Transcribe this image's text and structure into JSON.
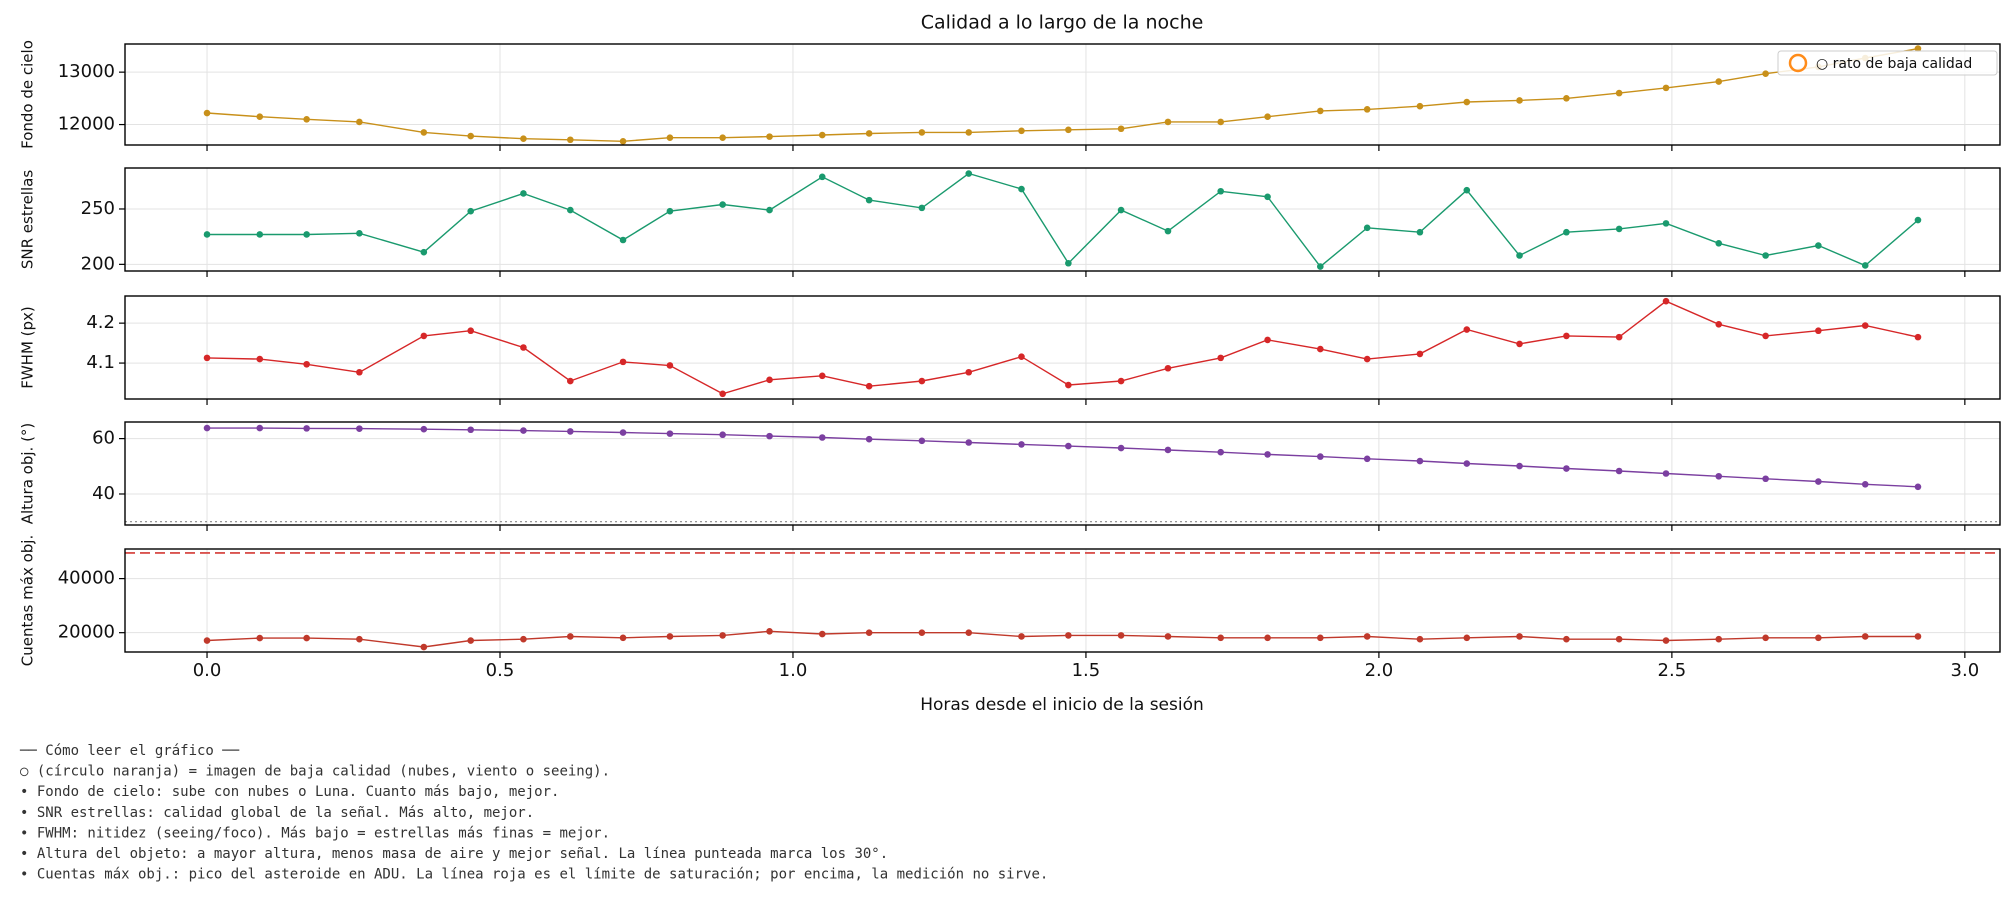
{
  "title": "Calidad a lo largo de la noche",
  "xlabel": "Horas desde el inicio de la sesión",
  "xlim": [
    -0.14,
    3.06
  ],
  "xticks": [
    {
      "value": 0,
      "label": "0.0"
    },
    {
      "value": 0.5,
      "label": "0.5"
    },
    {
      "value": 1,
      "label": "1.0"
    },
    {
      "value": 1.5,
      "label": "1.5"
    },
    {
      "value": 2,
      "label": "2.0"
    },
    {
      "value": 2.5,
      "label": "2.5"
    },
    {
      "value": 3,
      "label": "3.0"
    }
  ],
  "x": [
    0,
    0.09,
    0.17,
    0.26,
    0.37,
    0.45,
    0.54,
    0.62,
    0.71,
    0.79,
    0.88,
    0.96,
    1.05,
    1.13,
    1.22,
    1.3,
    1.39,
    1.47,
    1.56,
    1.64,
    1.73,
    1.81,
    1.9,
    1.98,
    2.07,
    2.15,
    2.24,
    2.32,
    2.41,
    2.49,
    2.58,
    2.66,
    2.75,
    2.83,
    2.92
  ],
  "chart_data": [
    {
      "type": "line",
      "ylabel": "Fondo de cielo",
      "color": "#c8901a",
      "grid": true,
      "ylim": [
        11610,
        13537
      ],
      "yticks": [
        12000,
        13000
      ],
      "values": [
        12220,
        12150,
        12100,
        12050,
        11850,
        11780,
        11730,
        11710,
        11680,
        11750,
        11750,
        11770,
        11800,
        11830,
        11850,
        11850,
        11880,
        11900,
        11920,
        12050,
        12050,
        12150,
        12260,
        12290,
        12350,
        12430,
        12460,
        12500,
        12600,
        12700,
        12820,
        12970,
        13100,
        13270,
        13450
      ],
      "legend": {
        "label": "○ rato de baja calidad",
        "position": "upper right",
        "marker_color": "#ff8c1a"
      }
    },
    {
      "type": "line",
      "ylabel": "SNR estrellas",
      "color": "#1a9a6e",
      "grid": true,
      "ylim": [
        194,
        287
      ],
      "yticks": [
        200,
        250
      ],
      "values": [
        227,
        227,
        227,
        228,
        211,
        248,
        264,
        249,
        222,
        248,
        254,
        249,
        279,
        258,
        251,
        282,
        268,
        201,
        249,
        230,
        266,
        261,
        198,
        233,
        229,
        267,
        208,
        229,
        232,
        237,
        219,
        208,
        217,
        199,
        240
      ]
    },
    {
      "type": "line",
      "ylabel": "FWHM (px)",
      "color": "#d62728",
      "grid": true,
      "ylim": [
        4.01,
        4.268
      ],
      "yticks": [
        4.1,
        4.2
      ],
      "values": [
        4.113,
        4.11,
        4.097,
        4.077,
        4.168,
        4.181,
        4.139,
        4.055,
        4.103,
        4.094,
        4.023,
        4.058,
        4.068,
        4.042,
        4.055,
        4.077,
        4.116,
        4.045,
        4.055,
        4.087,
        4.113,
        4.158,
        4.135,
        4.11,
        4.123,
        4.184,
        4.148,
        4.168,
        4.165,
        4.255,
        4.197,
        4.168,
        4.181,
        4.194,
        4.165
      ]
    },
    {
      "type": "line",
      "ylabel": "Altura obj. (°)",
      "color": "#7b3fa0",
      "grid": true,
      "ylim": [
        28.8,
        66
      ],
      "yticks": [
        40,
        60
      ],
      "values": [
        63.8,
        63.8,
        63.7,
        63.6,
        63.4,
        63.2,
        62.9,
        62.6,
        62.2,
        61.8,
        61.4,
        60.9,
        60.4,
        59.8,
        59.2,
        58.6,
        57.9,
        57.3,
        56.6,
        55.9,
        55.1,
        54.3,
        53.5,
        52.7,
        51.9,
        51.0,
        50.1,
        49.2,
        48.3,
        47.4,
        46.4,
        45.5,
        44.5,
        43.5,
        42.6
      ],
      "reference_line": {
        "value": 30,
        "style": "dotted",
        "color": "#888888"
      }
    },
    {
      "type": "line",
      "ylabel": "Cuentas máx obj.",
      "color": "#c0392b",
      "grid": true,
      "ylim": [
        12857,
        50952
      ],
      "yticks": [
        20000,
        40000
      ],
      "values": [
        17100,
        18000,
        18000,
        17600,
        14700,
        17100,
        17600,
        18600,
        18100,
        18600,
        19000,
        20500,
        19500,
        20000,
        20000,
        20000,
        18600,
        19000,
        19000,
        18600,
        18100,
        18100,
        18100,
        18600,
        17600,
        18100,
        18600,
        17600,
        17600,
        17100,
        17600,
        18100,
        18100,
        18600,
        18600
      ],
      "reference_line": {
        "value": 49500,
        "style": "dashed",
        "color": "#d9534f"
      }
    }
  ],
  "notes": [
    "── Cómo leer el gráfico ──",
    "○ (círculo naranja) = imagen de baja calidad (nubes, viento o seeing).",
    "• Fondo de cielo: sube con nubes o Luna. Cuanto más bajo, mejor.",
    "• SNR estrellas: calidad global de la señal. Más alto, mejor.",
    "• FWHM: nitidez (seeing/foco). Más bajo = estrellas más finas = mejor.",
    "• Altura del objeto: a mayor altura, menos masa de aire y mejor señal. La línea punteada marca los 30°.",
    "• Cuentas máx obj.: pico del asteroide en ADU. La línea roja es el límite de saturación; por encima, la medición no sirve."
  ]
}
